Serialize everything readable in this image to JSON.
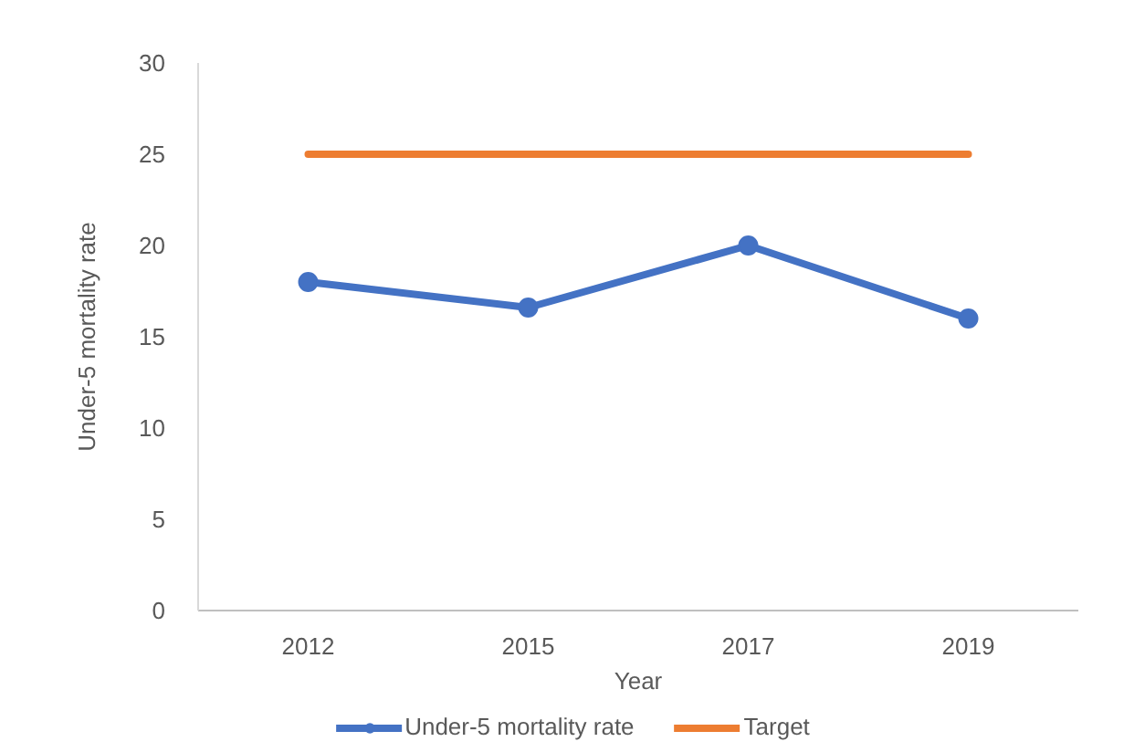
{
  "chart_data": {
    "type": "line",
    "xlabel": "Year",
    "ylabel": "Under-5 mortality rate",
    "categories": [
      "2012",
      "2015",
      "2017",
      "2019"
    ],
    "series": [
      {
        "name": "Under-5 mortality rate",
        "color": "#4472c4",
        "values": [
          18,
          16.6,
          20,
          16
        ],
        "marker": "circle"
      },
      {
        "name": "Target",
        "color": "#ed7d31",
        "values": [
          25,
          25,
          25,
          25
        ],
        "marker": "none"
      }
    ],
    "ylim": [
      0,
      30
    ],
    "yticks": [
      0,
      5,
      10,
      15,
      20,
      25,
      30
    ],
    "grid": false,
    "legend": "bottom"
  }
}
